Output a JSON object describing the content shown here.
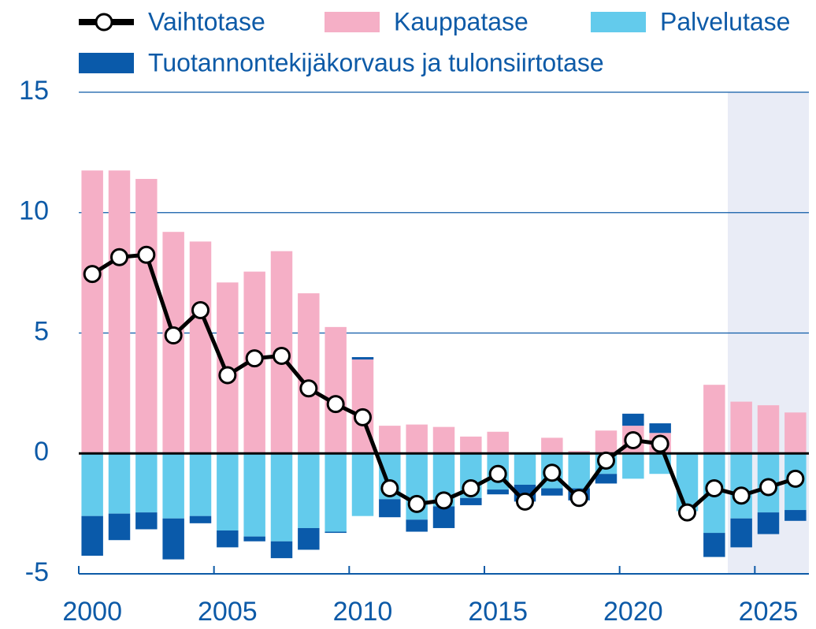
{
  "chart_data": {
    "type": "bar",
    "x": [
      2000,
      2001,
      2002,
      2003,
      2004,
      2005,
      2006,
      2007,
      2008,
      2009,
      2010,
      2011,
      2012,
      2013,
      2014,
      2015,
      2016,
      2017,
      2018,
      2019,
      2020,
      2021,
      2022,
      2023,
      2024,
      2025,
      2026
    ],
    "series": [
      {
        "name": "Vaihtotase",
        "type": "line",
        "color": "#000000",
        "values": [
          7.45,
          8.15,
          8.25,
          4.9,
          5.95,
          3.25,
          3.95,
          4.05,
          2.7,
          2.05,
          1.5,
          -1.45,
          -2.1,
          -1.95,
          -1.45,
          -0.85,
          -2.0,
          -0.8,
          -1.85,
          -0.3,
          0.55,
          0.4,
          -2.45,
          -1.45,
          -1.75,
          -1.4,
          -1.05
        ]
      },
      {
        "name": "Kauppatase",
        "type": "bar",
        "color": "#f5afc6",
        "values": [
          11.75,
          11.75,
          11.4,
          9.2,
          8.8,
          7.1,
          7.55,
          8.4,
          6.65,
          5.25,
          3.9,
          1.15,
          1.2,
          1.1,
          0.7,
          0.9,
          0,
          0.65,
          0.1,
          0.95,
          1.15,
          0.85,
          0,
          2.85,
          2.15,
          2.0,
          1.7
        ]
      },
      {
        "name": "Palvelutase",
        "type": "bar",
        "color": "#63cbec",
        "values": [
          -2.6,
          -2.5,
          -2.45,
          -2.7,
          -2.6,
          -3.2,
          -3.45,
          -3.65,
          -3.1,
          -3.25,
          -2.6,
          -1.9,
          -2.75,
          -2.2,
          -1.85,
          -1.5,
          -1.3,
          -1.45,
          -1.45,
          -0.85,
          -1.05,
          -0.85,
          -2.4,
          -3.3,
          -2.7,
          -2.45,
          -2.35
        ]
      },
      {
        "name": "Tuotannontekijäkorvaus ja tulonsiirtotase",
        "type": "bar",
        "color": "#0a5aaa",
        "values": [
          -1.65,
          -1.1,
          -0.7,
          -1.7,
          -0.3,
          -0.7,
          -0.2,
          -0.7,
          -0.9,
          -0.05,
          0.1,
          -0.75,
          -0.5,
          -0.9,
          -0.3,
          -0.2,
          -0.7,
          -0.3,
          -0.5,
          -0.4,
          0.5,
          0.4,
          0,
          -1.0,
          -1.2,
          -0.9,
          -0.45
        ]
      }
    ],
    "xlim": [
      1999.5,
      2026.5
    ],
    "xticks": [
      2000,
      2005,
      2010,
      2015,
      2020,
      2025
    ],
    "ylim": [
      -5,
      15
    ],
    "yticks": [
      -5,
      0,
      5,
      10,
      15
    ],
    "grid": true,
    "shaded_from": 2024,
    "legend": "top"
  }
}
